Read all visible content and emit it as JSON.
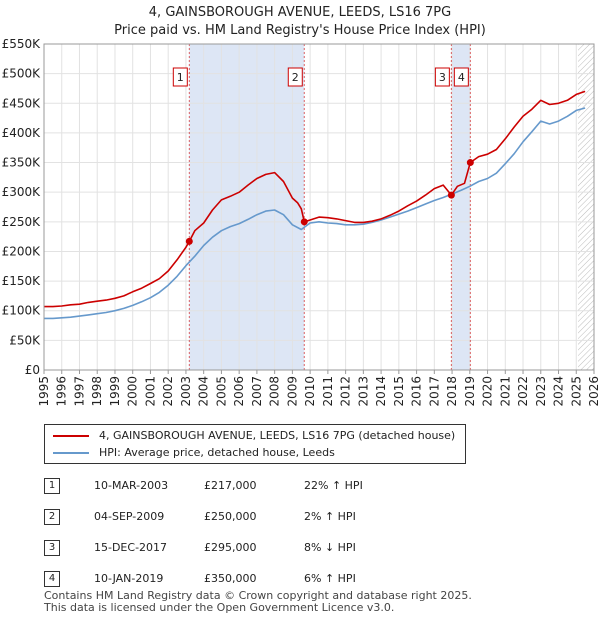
{
  "title": {
    "line1": "4, GAINSBOROUGH AVENUE, LEEDS, LS16 7PG",
    "line2": "Price paid vs. HM Land Registry's House Price Index (HPI)"
  },
  "colors": {
    "price": "#cc0000",
    "hpi": "#6699cc",
    "shade": "#dde6f5",
    "grid": "#e2e2e2",
    "hatch": "#bbbbbb"
  },
  "chart_data": {
    "type": "line",
    "title": "Price paid vs. HM Land Registry's House Price Index (HPI)",
    "xlabel": "",
    "ylabel": "",
    "xlim": [
      1995,
      2026
    ],
    "ylim": [
      0,
      550000
    ],
    "yticks": [
      {
        "value": 0,
        "label": "£0"
      },
      {
        "value": 50000,
        "label": "£50K"
      },
      {
        "value": 100000,
        "label": "£100K"
      },
      {
        "value": 150000,
        "label": "£150K"
      },
      {
        "value": 200000,
        "label": "£200K"
      },
      {
        "value": 250000,
        "label": "£250K"
      },
      {
        "value": 300000,
        "label": "£300K"
      },
      {
        "value": 350000,
        "label": "£350K"
      },
      {
        "value": 400000,
        "label": "£400K"
      },
      {
        "value": 450000,
        "label": "£450K"
      },
      {
        "value": 500000,
        "label": "£500K"
      },
      {
        "value": 550000,
        "label": "£550K"
      }
    ],
    "xticks": [
      "1995",
      "1996",
      "1997",
      "1998",
      "1999",
      "2000",
      "2001",
      "2002",
      "2003",
      "2004",
      "2005",
      "2006",
      "2007",
      "2008",
      "2009",
      "2010",
      "2011",
      "2012",
      "2013",
      "2014",
      "2015",
      "2016",
      "2017",
      "2018",
      "2019",
      "2020",
      "2021",
      "2022",
      "2023",
      "2024",
      "2025",
      "2026"
    ],
    "shaded_ranges": [
      [
        2003.19,
        2009.67
      ],
      [
        2017.96,
        2019.03
      ]
    ],
    "future_from": 2025.1,
    "series": [
      {
        "name": "4, GAINSBOROUGH AVENUE, LEEDS, LS16 7PG (detached house)",
        "x": [
          1995.0,
          1995.5,
          1996.0,
          1996.5,
          1997.0,
          1997.5,
          1998.0,
          1998.5,
          1999.0,
          1999.5,
          2000.0,
          2000.5,
          2001.0,
          2001.5,
          2002.0,
          2002.5,
          2003.0,
          2003.19,
          2003.5,
          2004.0,
          2004.5,
          2005.0,
          2005.5,
          2006.0,
          2006.5,
          2007.0,
          2007.5,
          2008.0,
          2008.5,
          2009.0,
          2009.3,
          2009.5,
          2009.67,
          2010.0,
          2010.5,
          2011.0,
          2011.5,
          2012.0,
          2012.5,
          2013.0,
          2013.5,
          2014.0,
          2014.5,
          2015.0,
          2015.5,
          2016.0,
          2016.5,
          2017.0,
          2017.5,
          2017.96,
          2018.3,
          2018.7,
          2019.03,
          2019.5,
          2020.0,
          2020.5,
          2021.0,
          2021.5,
          2022.0,
          2022.5,
          2023.0,
          2023.5,
          2024.0,
          2024.5,
          2025.0,
          2025.5
        ],
        "values": [
          107000,
          107000,
          108000,
          110000,
          111000,
          114000,
          116000,
          118000,
          121000,
          125000,
          132000,
          138000,
          146000,
          154000,
          167000,
          186000,
          207000,
          217000,
          235000,
          248000,
          270000,
          287000,
          293000,
          300000,
          312000,
          323000,
          330000,
          333000,
          318000,
          290000,
          282000,
          272000,
          250000,
          253000,
          258000,
          257000,
          255000,
          252000,
          249000,
          249000,
          251000,
          255000,
          261000,
          268000,
          277000,
          285000,
          295000,
          306000,
          312000,
          295000,
          310000,
          315000,
          350000,
          360000,
          364000,
          372000,
          390000,
          410000,
          428000,
          440000,
          455000,
          448000,
          450000,
          455000,
          465000,
          470000
        ]
      },
      {
        "name": "HPI: Average price, detached house, Leeds",
        "x": [
          1995.0,
          1995.5,
          1996.0,
          1996.5,
          1997.0,
          1997.5,
          1998.0,
          1998.5,
          1999.0,
          1999.5,
          2000.0,
          2000.5,
          2001.0,
          2001.5,
          2002.0,
          2002.5,
          2003.0,
          2003.5,
          2004.0,
          2004.5,
          2005.0,
          2005.5,
          2006.0,
          2006.5,
          2007.0,
          2007.5,
          2008.0,
          2008.5,
          2009.0,
          2009.5,
          2010.0,
          2010.5,
          2011.0,
          2011.5,
          2012.0,
          2012.5,
          2013.0,
          2013.5,
          2014.0,
          2014.5,
          2015.0,
          2015.5,
          2016.0,
          2016.5,
          2017.0,
          2017.5,
          2018.0,
          2018.5,
          2019.0,
          2019.5,
          2020.0,
          2020.5,
          2021.0,
          2021.5,
          2022.0,
          2022.5,
          2023.0,
          2023.5,
          2024.0,
          2024.5,
          2025.0,
          2025.5
        ],
        "values": [
          87000,
          87000,
          88000,
          89000,
          91000,
          93000,
          95000,
          97000,
          100000,
          104000,
          109000,
          115000,
          122000,
          131000,
          143000,
          158000,
          176000,
          192000,
          210000,
          224000,
          235000,
          242000,
          247000,
          254000,
          262000,
          268000,
          270000,
          262000,
          245000,
          237000,
          248000,
          250000,
          248000,
          247000,
          245000,
          245000,
          246000,
          249000,
          253000,
          258000,
          263000,
          268000,
          274000,
          280000,
          286000,
          291000,
          297000,
          303000,
          310000,
          318000,
          323000,
          332000,
          348000,
          365000,
          385000,
          402000,
          420000,
          415000,
          420000,
          428000,
          438000,
          442000
        ]
      }
    ],
    "markers": [
      {
        "label": "1",
        "x": 2003.19,
        "value": 217000
      },
      {
        "label": "2",
        "x": 2009.67,
        "value": 250000
      },
      {
        "label": "3",
        "x": 2017.96,
        "value": 295000
      },
      {
        "label": "4",
        "x": 2019.03,
        "value": 350000
      }
    ]
  },
  "legend": {
    "items": [
      {
        "label": "4, GAINSBOROUGH AVENUE, LEEDS, LS16 7PG (detached house)"
      },
      {
        "label": "HPI: Average price, detached house, Leeds"
      }
    ]
  },
  "sales": [
    {
      "num": "1",
      "date": "10-MAR-2003",
      "price": "£217,000",
      "hpi": "22% ↑ HPI"
    },
    {
      "num": "2",
      "date": "04-SEP-2009",
      "price": "£250,000",
      "hpi": "2% ↑ HPI"
    },
    {
      "num": "3",
      "date": "15-DEC-2017",
      "price": "£295,000",
      "hpi": "8% ↓ HPI"
    },
    {
      "num": "4",
      "date": "10-JAN-2019",
      "price": "£350,000",
      "hpi": "6% ↑ HPI"
    }
  ],
  "footer": {
    "line1": "Contains HM Land Registry data © Crown copyright and database right 2025.",
    "line2": "This data is licensed under the Open Government Licence v3.0."
  }
}
